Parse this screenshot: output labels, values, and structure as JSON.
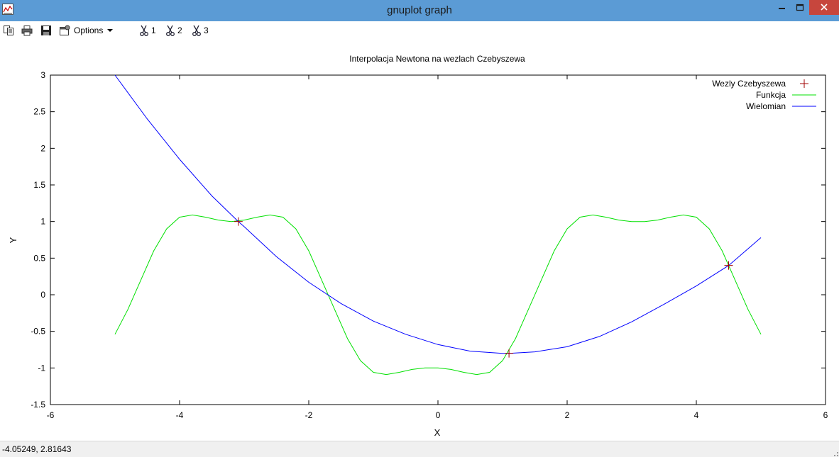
{
  "window": {
    "title": "gnuplot graph",
    "close_color": "#c7463d",
    "titlebar_color": "#5b9bd5"
  },
  "toolbar": {
    "items": [
      {
        "icon": "copy-icon"
      },
      {
        "icon": "print-icon"
      },
      {
        "icon": "save-icon"
      },
      {
        "icon": "options-icon",
        "label": "Options"
      },
      {
        "icon": "scissors-icon",
        "label": "1"
      },
      {
        "icon": "scissors-icon",
        "label": "2"
      },
      {
        "icon": "scissors-icon",
        "label": "3"
      }
    ]
  },
  "status": {
    "coords": "-4.05249,  2.81643"
  },
  "chart_data": {
    "type": "line",
    "title": "Interpolacja Newtona na wezlach Czebyszewa",
    "xlabel": "X",
    "ylabel": "Y",
    "xlim": [
      -6,
      6
    ],
    "ylim": [
      -1.5,
      3
    ],
    "xticks": [
      "-6",
      "-4",
      "-2",
      "0",
      "2",
      "4",
      "6"
    ],
    "yticks": [
      "-1.5",
      "-1",
      "-0.5",
      "0",
      "0.5",
      "1",
      "1.5",
      "2",
      "2.5",
      "3"
    ],
    "grid": false,
    "legend_position": "top-right",
    "series": [
      {
        "name": "Wezly Czebyszewa",
        "style": "points",
        "marker": "plus",
        "color": "#a00000",
        "x": [
          -3.09,
          1.1,
          4.5
        ],
        "y": [
          1.0,
          -0.8,
          0.4
        ]
      },
      {
        "name": "Funkcja",
        "style": "line",
        "color": "#00e000",
        "x": [
          -5.0,
          -4.8,
          -4.6,
          -4.4,
          -4.2,
          -4.0,
          -3.8,
          -3.6,
          -3.4,
          -3.2,
          -3.0,
          -2.8,
          -2.6,
          -2.4,
          -2.2,
          -2.0,
          -1.8,
          -1.6,
          -1.4,
          -1.2,
          -1.0,
          -0.8,
          -0.6,
          -0.4,
          -0.2,
          0.0,
          0.2,
          0.4,
          0.6,
          0.8,
          1.0,
          1.2,
          1.4,
          1.6,
          1.8,
          2.0,
          2.2,
          2.4,
          2.6,
          2.8,
          3.0,
          3.2,
          3.4,
          3.6,
          3.8,
          4.0,
          4.2,
          4.4,
          4.6,
          4.8,
          5.0
        ],
        "y": [
          -0.54,
          -0.2,
          0.2,
          0.6,
          0.9,
          1.06,
          1.09,
          1.06,
          1.02,
          1.0,
          1.02,
          1.06,
          1.09,
          1.06,
          0.9,
          0.6,
          0.2,
          -0.2,
          -0.6,
          -0.9,
          -1.06,
          -1.09,
          -1.06,
          -1.02,
          -1.0,
          -1.0,
          -1.02,
          -1.06,
          -1.09,
          -1.06,
          -0.9,
          -0.6,
          -0.2,
          0.2,
          0.6,
          0.9,
          1.06,
          1.09,
          1.06,
          1.02,
          1.0,
          1.0,
          1.02,
          1.06,
          1.09,
          1.06,
          0.9,
          0.6,
          0.2,
          -0.2,
          -0.54
        ]
      },
      {
        "name": "Wielomian",
        "style": "line",
        "color": "#0000ff",
        "x": [
          -5.0,
          -4.5,
          -4.0,
          -3.5,
          -3.09,
          -3.0,
          -2.5,
          -2.0,
          -1.5,
          -1.0,
          -0.5,
          0.0,
          0.5,
          1.0,
          1.1,
          1.5,
          2.0,
          2.5,
          3.0,
          3.5,
          4.0,
          4.5,
          5.0
        ],
        "y": [
          3.0,
          2.4,
          1.85,
          1.35,
          1.0,
          0.93,
          0.52,
          0.17,
          -0.12,
          -0.36,
          -0.54,
          -0.68,
          -0.77,
          -0.8,
          -0.8,
          -0.78,
          -0.71,
          -0.57,
          -0.37,
          -0.13,
          0.12,
          0.4,
          0.78
        ]
      }
    ]
  }
}
